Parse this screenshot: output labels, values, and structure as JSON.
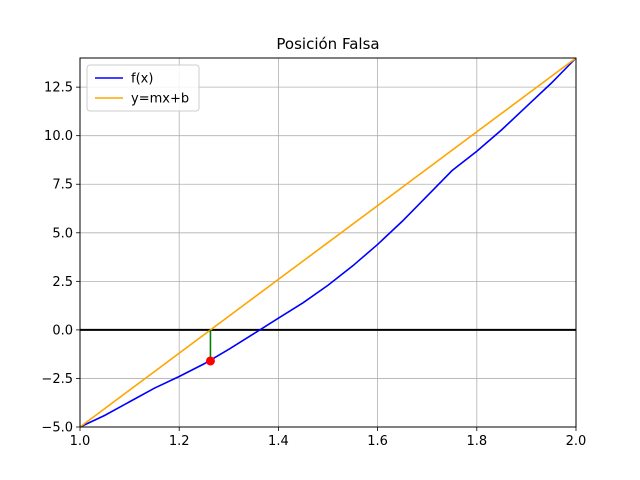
{
  "chart_data": {
    "type": "line",
    "title": "Posición Falsa",
    "xlabel": "",
    "ylabel": "",
    "xlim": [
      1.0,
      2.0
    ],
    "ylim": [
      -5.0,
      14.0
    ],
    "grid": true,
    "legend_placement": "top-left",
    "x_ticks": [
      "1.0",
      "1.2",
      "1.4",
      "1.6",
      "1.8",
      "2.0"
    ],
    "y_ticks": [
      "−5.0",
      "−2.5",
      "0.0",
      "2.5",
      "5.0",
      "7.5",
      "10.0",
      "12.5"
    ],
    "series": [
      {
        "name": "f(x)",
        "color": "#0000ff",
        "x": [
          1.0,
          1.05,
          1.1,
          1.15,
          1.2,
          1.25,
          1.3,
          1.35,
          1.4,
          1.45,
          1.5,
          1.55,
          1.6,
          1.65,
          1.7,
          1.75,
          1.8,
          1.85,
          1.9,
          1.95,
          2.0
        ],
        "y": [
          -5.0,
          -4.4,
          -3.7,
          -3.0,
          -2.4,
          -1.75,
          -1.0,
          -0.2,
          0.6,
          1.4,
          2.3,
          3.3,
          4.4,
          5.6,
          6.9,
          8.2,
          9.2,
          10.3,
          11.5,
          12.7,
          14.0
        ]
      },
      {
        "name": "y=mx+b",
        "color": "#ffa500",
        "x": [
          1.0,
          2.0
        ],
        "y": [
          -5.0,
          14.0
        ]
      }
    ],
    "annotations": {
      "zero_line": {
        "y": 0.0,
        "color": "#000000"
      },
      "root_estimate_x": 1.263,
      "vertical_segment": {
        "x": 1.263,
        "y_from": 0.0,
        "y_to": -1.6,
        "color": "#008000"
      },
      "point": {
        "x": 1.263,
        "y": -1.6,
        "color": "#ff0000"
      }
    }
  }
}
